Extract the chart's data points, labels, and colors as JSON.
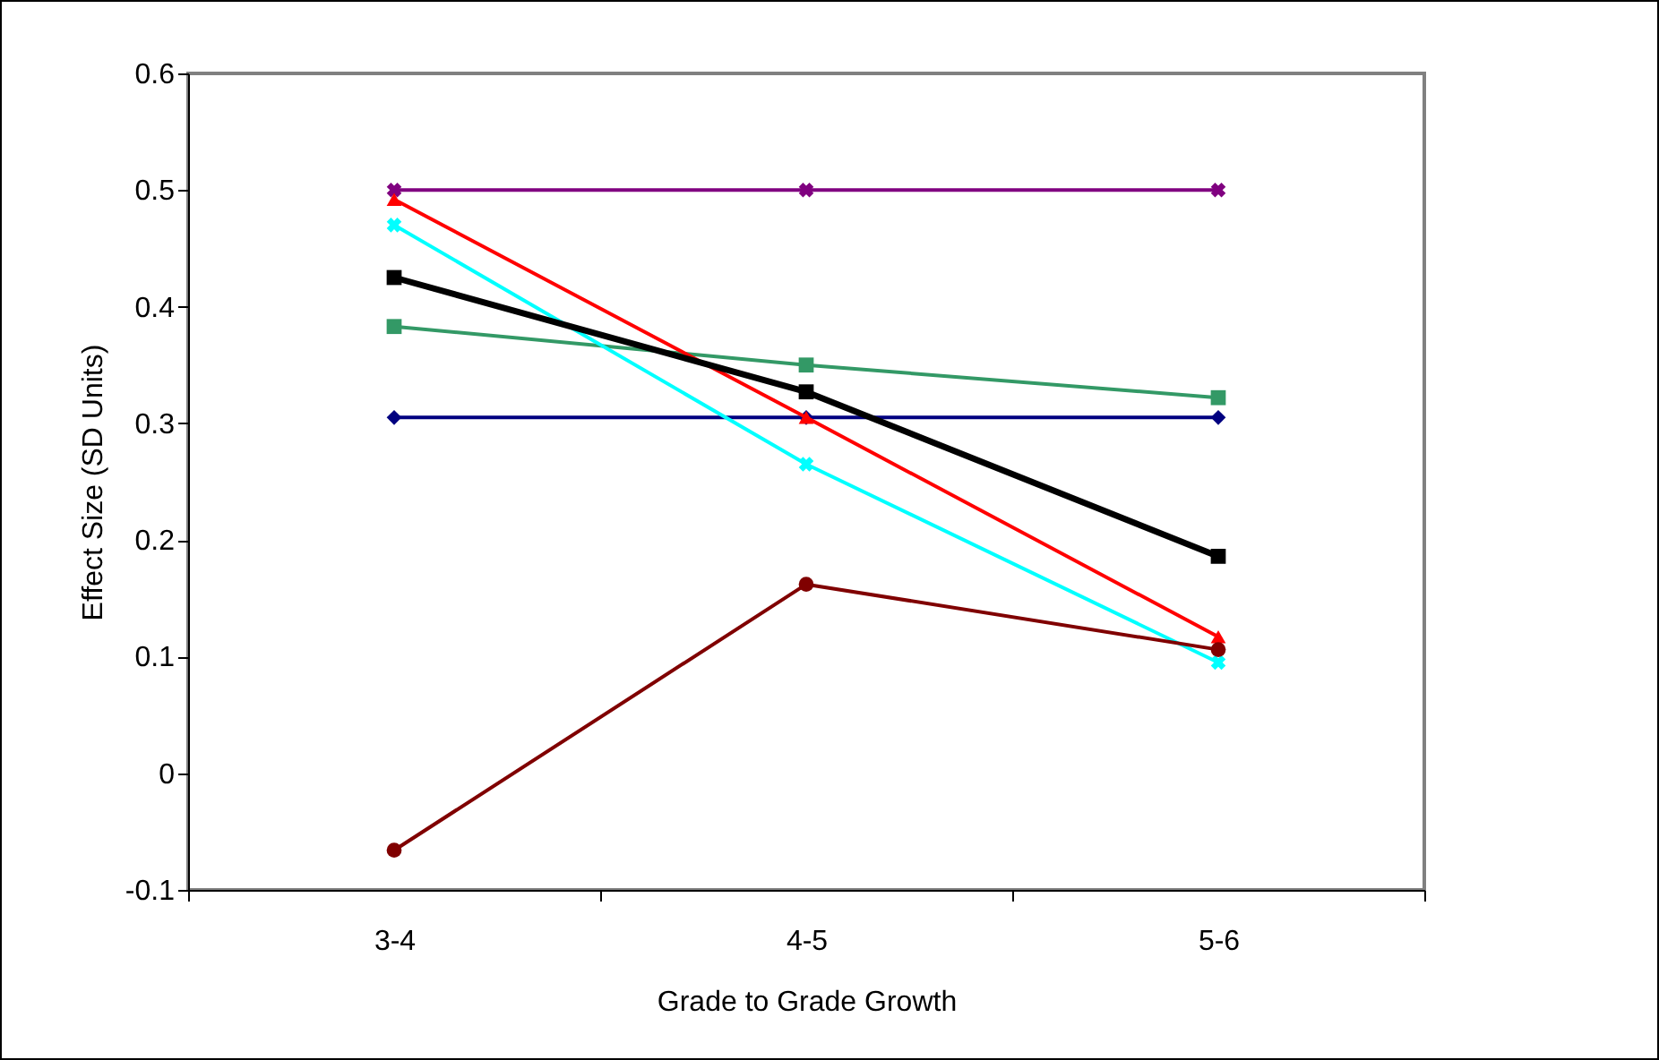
{
  "chart_data": {
    "type": "line",
    "xlabel": "Grade to Grade Growth",
    "ylabel": "Effect Size (SD Units)",
    "categories": [
      "3-4",
      "4-5",
      "5-6"
    ],
    "ylim": [
      -0.1,
      0.6
    ],
    "yticks": [
      {
        "value": -0.1,
        "label": "-0.1"
      },
      0,
      0.1,
      0.2,
      0.3,
      0.4,
      0.5,
      0.6
    ],
    "series": [
      {
        "color": "#000080",
        "marker": "diamond",
        "values": [
          0.305,
          0.305,
          0.305
        ]
      },
      {
        "color": "#800080",
        "marker": "cross",
        "values": [
          0.5,
          0.5,
          0.5
        ]
      },
      {
        "color": "#339966",
        "marker": "square",
        "values": [
          0.383,
          0.35,
          0.322
        ]
      },
      {
        "color": "#ff0000",
        "marker": "triangle",
        "values": [
          0.492,
          0.305,
          0.117
        ]
      },
      {
        "color": "#00ffff",
        "marker": "cross",
        "values": [
          0.47,
          0.265,
          0.095
        ]
      },
      {
        "color": "#000000",
        "marker": "square",
        "values": [
          0.425,
          0.327,
          0.186
        ]
      },
      {
        "color": "#800000",
        "marker": "circle",
        "values": [
          -0.066,
          0.162,
          0.106
        ]
      }
    ]
  }
}
